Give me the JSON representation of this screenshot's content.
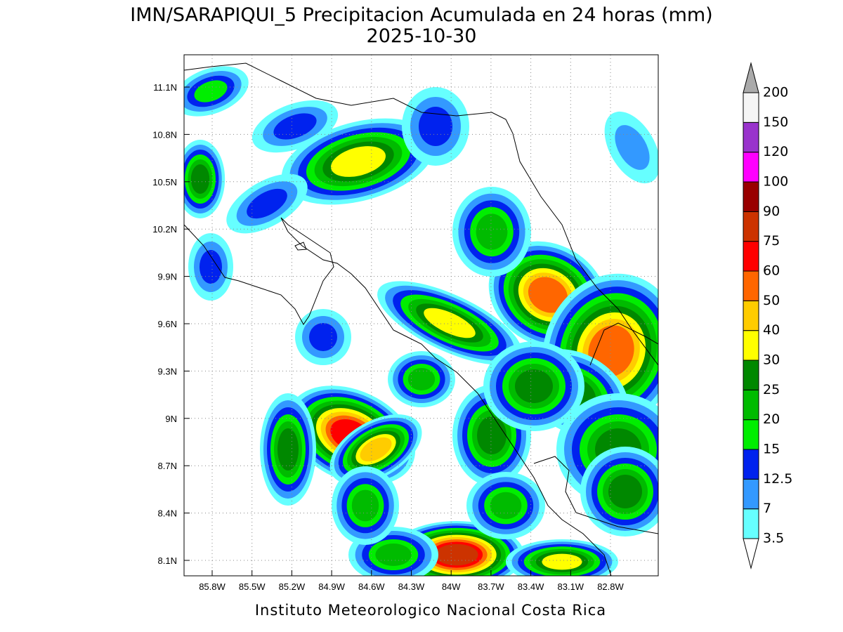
{
  "title": "IMN/SARAPIQUI_5 Precipitacion Acumulada en 24 horas (mm)",
  "subtitle": "2025-10-30",
  "map": {
    "lat_labels": [
      "11.1N",
      "10.8N",
      "10.5N",
      "10.2N",
      "9.9N",
      "9.6N",
      "9.3N",
      "9N",
      "8.7N",
      "8.4N",
      "8.1N"
    ],
    "lon_labels": [
      "85.8W",
      "85.5W",
      "85.2W",
      "84.9W",
      "84.6W",
      "84.3W",
      "84W",
      "83.7W",
      "83.4W",
      "83.1W",
      "82.8W"
    ]
  },
  "colorbar": {
    "labels": [
      "3.5",
      "7",
      "12.5",
      "15",
      "20",
      "25",
      "30",
      "40",
      "50",
      "60",
      "75",
      "90",
      "100",
      "120",
      "150",
      "200"
    ],
    "colors": [
      "#66ffff",
      "#3399ff",
      "#0022ee",
      "#00ee00",
      "#00bb00",
      "#008800",
      "#ffff00",
      "#ffcc00",
      "#ff6600",
      "#ff0000",
      "#cc3300",
      "#990000",
      "#ff00ff",
      "#9933cc",
      "#f5f5f5"
    ],
    "under_color": "#ffffff",
    "over_color": "#aaaaaa"
  },
  "footer": "Instituto Meteorologico Nacional Costa Rica"
}
